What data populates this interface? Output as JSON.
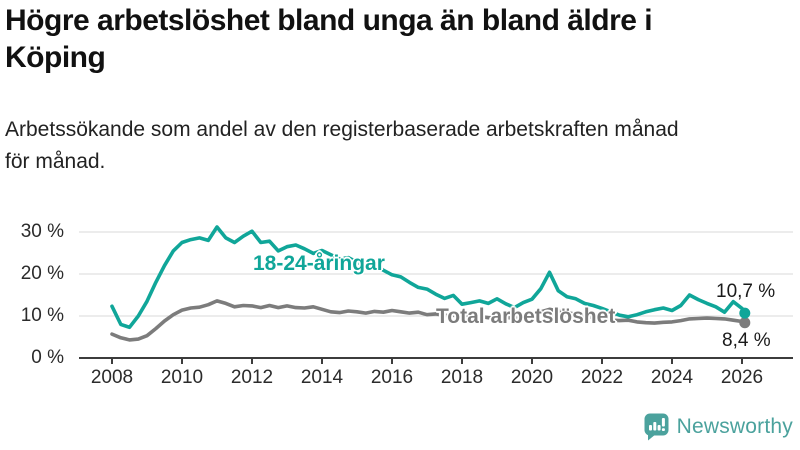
{
  "header": {
    "title_lines": [
      "Högre arbetslöshet bland unga än bland äldre i",
      "Köping"
    ],
    "subtitle_lines": [
      "Arbetssökande som andel av den registerbaserade arbetskraften månad",
      "för månad."
    ]
  },
  "branding": {
    "logo_text": "Newsworthy",
    "logo_icon": "bar-chart-speech-bubble-icon",
    "logo_color": "#4BA29D"
  },
  "chart_data": {
    "type": "line",
    "title": "",
    "xlabel": "",
    "ylabel": "",
    "x_unit": "year (monthly series)",
    "ylim": [
      0,
      33
    ],
    "xlim": [
      2007.1,
      2027.4
    ],
    "grid": "horizontal",
    "grid_color": "#d8d8d8",
    "axis_color": "#3c3c3c",
    "legend_position": "inline-labels",
    "xticks": [
      {
        "year": 2008,
        "label": "2008"
      },
      {
        "year": 2010,
        "label": "2010"
      },
      {
        "year": 2012,
        "label": "2012"
      },
      {
        "year": 2014,
        "label": "2014"
      },
      {
        "year": 2016,
        "label": "2016"
      },
      {
        "year": 2018,
        "label": "2018"
      },
      {
        "year": 2020,
        "label": "2020"
      },
      {
        "year": 2022,
        "label": "2022"
      },
      {
        "year": 2024,
        "label": "2024"
      },
      {
        "year": 2026,
        "label": "2026"
      }
    ],
    "yticks": [
      {
        "value": 0,
        "label": "0 %"
      },
      {
        "value": 10,
        "label": "10 %"
      },
      {
        "value": 20,
        "label": "20 %"
      },
      {
        "value": 30,
        "label": "30 %"
      }
    ],
    "series": [
      {
        "name": "18-24-åringar",
        "color": "#10a699",
        "end_value": 10.7,
        "end_label": "10,7 %",
        "points": [
          [
            2008.0,
            12.3
          ],
          [
            2008.25,
            8.0
          ],
          [
            2008.5,
            7.3
          ],
          [
            2008.75,
            10.0
          ],
          [
            2009.0,
            13.5
          ],
          [
            2009.25,
            18.0
          ],
          [
            2009.5,
            22.0
          ],
          [
            2009.75,
            25.5
          ],
          [
            2010.0,
            27.5
          ],
          [
            2010.25,
            28.2
          ],
          [
            2010.5,
            28.6
          ],
          [
            2010.75,
            28.0
          ],
          [
            2011.0,
            31.2
          ],
          [
            2011.25,
            28.6
          ],
          [
            2011.5,
            27.5
          ],
          [
            2011.75,
            29.0
          ],
          [
            2012.0,
            30.2
          ],
          [
            2012.25,
            27.5
          ],
          [
            2012.5,
            27.8
          ],
          [
            2012.75,
            25.5
          ],
          [
            2013.0,
            26.5
          ],
          [
            2013.25,
            26.9
          ],
          [
            2013.5,
            26.0
          ],
          [
            2013.75,
            24.9
          ],
          [
            2014.0,
            25.6
          ],
          [
            2014.25,
            24.6
          ],
          [
            2014.5,
            23.6
          ],
          [
            2014.75,
            23.9
          ],
          [
            2015.0,
            22.8
          ],
          [
            2015.25,
            21.9
          ],
          [
            2015.5,
            22.4
          ],
          [
            2015.75,
            20.9
          ],
          [
            2016.0,
            19.8
          ],
          [
            2016.25,
            19.3
          ],
          [
            2016.5,
            18.0
          ],
          [
            2016.75,
            16.8
          ],
          [
            2017.0,
            16.4
          ],
          [
            2017.25,
            15.2
          ],
          [
            2017.5,
            14.2
          ],
          [
            2017.75,
            14.9
          ],
          [
            2018.0,
            12.8
          ],
          [
            2018.25,
            13.2
          ],
          [
            2018.5,
            13.6
          ],
          [
            2018.75,
            13.0
          ],
          [
            2019.0,
            14.1
          ],
          [
            2019.25,
            12.9
          ],
          [
            2019.5,
            12.0
          ],
          [
            2019.75,
            13.2
          ],
          [
            2020.0,
            14.0
          ],
          [
            2020.25,
            16.5
          ],
          [
            2020.5,
            20.4
          ],
          [
            2020.75,
            16.0
          ],
          [
            2021.0,
            14.6
          ],
          [
            2021.25,
            14.1
          ],
          [
            2021.5,
            13.0
          ],
          [
            2021.75,
            12.5
          ],
          [
            2022.0,
            11.8
          ],
          [
            2022.25,
            11.0
          ],
          [
            2022.5,
            10.2
          ],
          [
            2022.75,
            9.8
          ],
          [
            2023.0,
            10.3
          ],
          [
            2023.25,
            11.0
          ],
          [
            2023.5,
            11.5
          ],
          [
            2023.75,
            11.9
          ],
          [
            2024.0,
            11.3
          ],
          [
            2024.25,
            12.5
          ],
          [
            2024.5,
            15.0
          ],
          [
            2024.75,
            13.9
          ],
          [
            2025.0,
            13.0
          ],
          [
            2025.25,
            12.2
          ],
          [
            2025.5,
            10.9
          ],
          [
            2025.75,
            13.4
          ],
          [
            2026.0,
            11.8
          ],
          [
            2026.08,
            10.7
          ]
        ]
      },
      {
        "name": "Total arbetslöshet",
        "color": "#7c7c7c",
        "end_value": 8.4,
        "end_label": "8,4 %",
        "points": [
          [
            2008.0,
            5.7
          ],
          [
            2008.25,
            4.8
          ],
          [
            2008.5,
            4.3
          ],
          [
            2008.75,
            4.5
          ],
          [
            2009.0,
            5.3
          ],
          [
            2009.25,
            7.0
          ],
          [
            2009.5,
            8.8
          ],
          [
            2009.75,
            10.3
          ],
          [
            2010.0,
            11.4
          ],
          [
            2010.25,
            11.9
          ],
          [
            2010.5,
            12.1
          ],
          [
            2010.75,
            12.7
          ],
          [
            2011.0,
            13.6
          ],
          [
            2011.25,
            13.0
          ],
          [
            2011.5,
            12.2
          ],
          [
            2011.75,
            12.5
          ],
          [
            2012.0,
            12.4
          ],
          [
            2012.25,
            12.0
          ],
          [
            2012.5,
            12.5
          ],
          [
            2012.75,
            12.0
          ],
          [
            2013.0,
            12.4
          ],
          [
            2013.25,
            12.0
          ],
          [
            2013.5,
            11.9
          ],
          [
            2013.75,
            12.2
          ],
          [
            2014.0,
            11.6
          ],
          [
            2014.25,
            11.0
          ],
          [
            2014.5,
            10.8
          ],
          [
            2014.75,
            11.2
          ],
          [
            2015.0,
            11.0
          ],
          [
            2015.25,
            10.7
          ],
          [
            2015.5,
            11.1
          ],
          [
            2015.75,
            10.9
          ],
          [
            2016.0,
            11.3
          ],
          [
            2016.25,
            11.0
          ],
          [
            2016.5,
            10.7
          ],
          [
            2016.75,
            10.9
          ],
          [
            2017.0,
            10.3
          ],
          [
            2017.25,
            10.5
          ],
          [
            2017.5,
            10.1
          ],
          [
            2017.75,
            10.2
          ],
          [
            2018.0,
            9.9
          ],
          [
            2018.25,
            9.7
          ],
          [
            2018.5,
            9.9
          ],
          [
            2018.75,
            9.6
          ],
          [
            2019.0,
            9.5
          ],
          [
            2019.25,
            9.7
          ],
          [
            2019.5,
            9.4
          ],
          [
            2019.75,
            9.8
          ],
          [
            2020.0,
            10.0
          ],
          [
            2020.25,
            11.0
          ],
          [
            2020.5,
            11.6
          ],
          [
            2020.75,
            11.2
          ],
          [
            2021.0,
            10.8
          ],
          [
            2021.25,
            10.4
          ],
          [
            2021.5,
            10.0
          ],
          [
            2021.75,
            9.6
          ],
          [
            2022.0,
            9.3
          ],
          [
            2022.25,
            9.0
          ],
          [
            2022.5,
            8.9
          ],
          [
            2022.75,
            9.0
          ],
          [
            2023.0,
            8.6
          ],
          [
            2023.25,
            8.4
          ],
          [
            2023.5,
            8.3
          ],
          [
            2023.75,
            8.5
          ],
          [
            2024.0,
            8.6
          ],
          [
            2024.25,
            8.9
          ],
          [
            2024.5,
            9.3
          ],
          [
            2024.75,
            9.4
          ],
          [
            2025.0,
            9.5
          ],
          [
            2025.25,
            9.4
          ],
          [
            2025.5,
            9.3
          ],
          [
            2025.75,
            9.0
          ],
          [
            2026.0,
            8.7
          ],
          [
            2026.08,
            8.4
          ]
        ]
      }
    ]
  }
}
